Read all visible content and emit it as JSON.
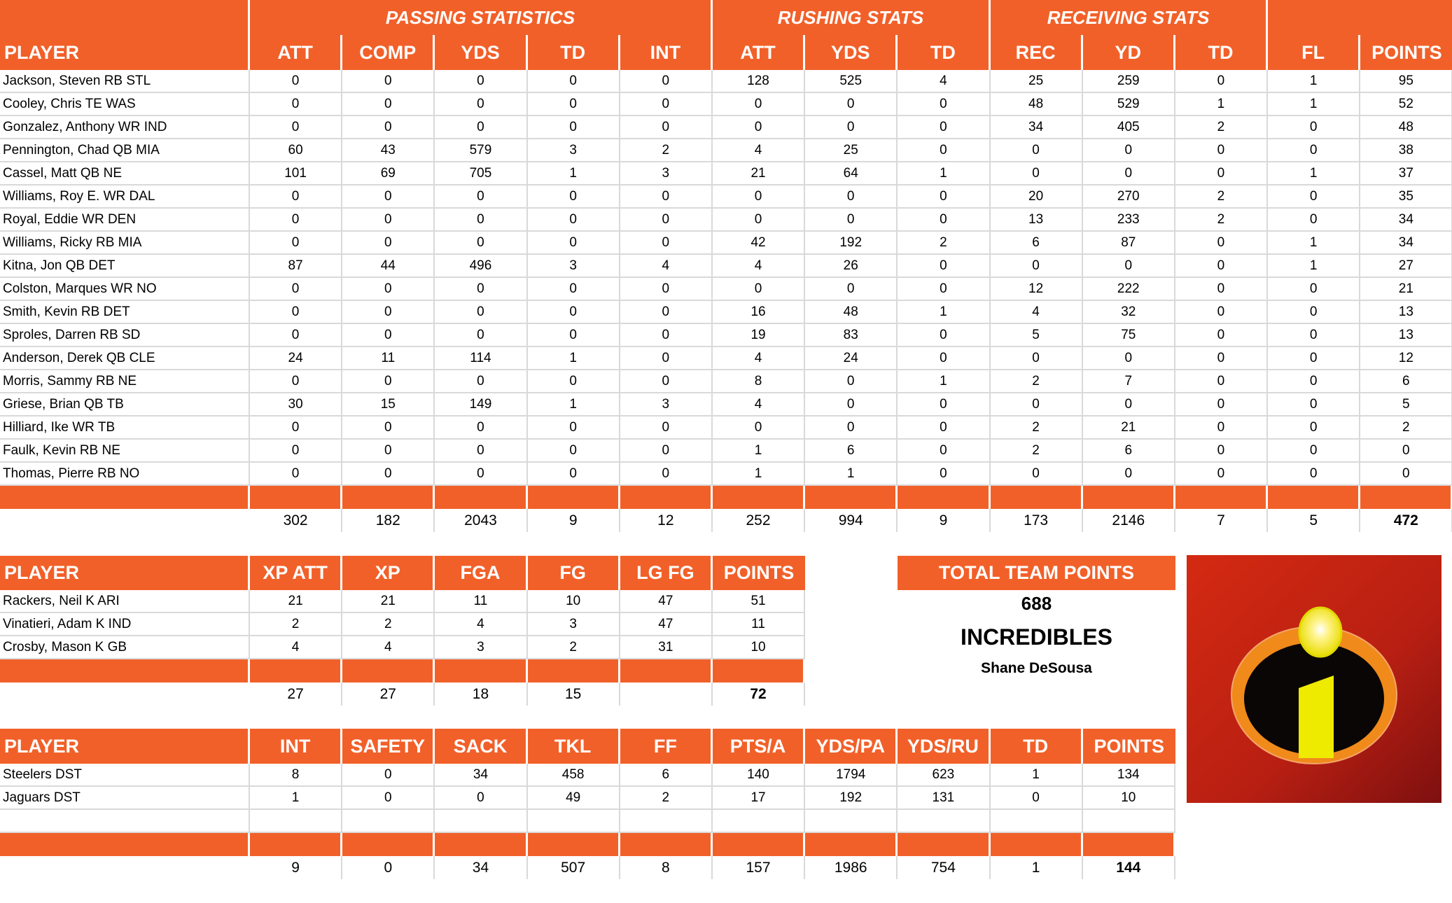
{
  "offense": {
    "groups": [
      {
        "label": "PASSING STATISTICS"
      },
      {
        "label": "RUSHING STATS"
      },
      {
        "label": "RECEIVING STATS"
      },
      {
        "label": ""
      }
    ],
    "columns": [
      "PLAYER",
      "ATT",
      "COMP",
      "YDS",
      "TD",
      "INT",
      "ATT",
      "YDS",
      "TD",
      "REC",
      "YD",
      "TD",
      "FL",
      "POINTS"
    ],
    "rows": [
      [
        "Jackson, Steven RB STL",
        "0",
        "0",
        "0",
        "0",
        "0",
        "128",
        "525",
        "4",
        "25",
        "259",
        "0",
        "1",
        "95"
      ],
      [
        "Cooley, Chris TE WAS",
        "0",
        "0",
        "0",
        "0",
        "0",
        "0",
        "0",
        "0",
        "48",
        "529",
        "1",
        "1",
        "52"
      ],
      [
        "Gonzalez, Anthony WR IND",
        "0",
        "0",
        "0",
        "0",
        "0",
        "0",
        "0",
        "0",
        "34",
        "405",
        "2",
        "0",
        "48"
      ],
      [
        "Pennington, Chad QB MIA",
        "60",
        "43",
        "579",
        "3",
        "2",
        "4",
        "25",
        "0",
        "0",
        "0",
        "0",
        "0",
        "38"
      ],
      [
        "Cassel, Matt QB NE",
        "101",
        "69",
        "705",
        "1",
        "3",
        "21",
        "64",
        "1",
        "0",
        "0",
        "0",
        "1",
        "37"
      ],
      [
        "Williams, Roy E. WR DAL",
        "0",
        "0",
        "0",
        "0",
        "0",
        "0",
        "0",
        "0",
        "20",
        "270",
        "2",
        "0",
        "35"
      ],
      [
        "Royal, Eddie WR DEN",
        "0",
        "0",
        "0",
        "0",
        "0",
        "0",
        "0",
        "0",
        "13",
        "233",
        "2",
        "0",
        "34"
      ],
      [
        "Williams, Ricky RB MIA",
        "0",
        "0",
        "0",
        "0",
        "0",
        "42",
        "192",
        "2",
        "6",
        "87",
        "0",
        "1",
        "34"
      ],
      [
        "Kitna, Jon QB DET",
        "87",
        "44",
        "496",
        "3",
        "4",
        "4",
        "26",
        "0",
        "0",
        "0",
        "0",
        "1",
        "27"
      ],
      [
        "Colston, Marques WR NO",
        "0",
        "0",
        "0",
        "0",
        "0",
        "0",
        "0",
        "0",
        "12",
        "222",
        "0",
        "0",
        "21"
      ],
      [
        "Smith, Kevin RB DET",
        "0",
        "0",
        "0",
        "0",
        "0",
        "16",
        "48",
        "1",
        "4",
        "32",
        "0",
        "0",
        "13"
      ],
      [
        "Sproles, Darren RB SD",
        "0",
        "0",
        "0",
        "0",
        "0",
        "19",
        "83",
        "0",
        "5",
        "75",
        "0",
        "0",
        "13"
      ],
      [
        "Anderson, Derek QB CLE",
        "24",
        "11",
        "114",
        "1",
        "0",
        "4",
        "24",
        "0",
        "0",
        "0",
        "0",
        "0",
        "12"
      ],
      [
        "Morris, Sammy RB NE",
        "0",
        "0",
        "0",
        "0",
        "0",
        "8",
        "0",
        "1",
        "2",
        "7",
        "0",
        "0",
        "6"
      ],
      [
        "Griese, Brian QB TB",
        "30",
        "15",
        "149",
        "1",
        "3",
        "4",
        "0",
        "0",
        "0",
        "0",
        "0",
        "0",
        "5"
      ],
      [
        "Hilliard, Ike WR TB",
        "0",
        "0",
        "0",
        "0",
        "0",
        "0",
        "0",
        "0",
        "2",
        "21",
        "0",
        "0",
        "2"
      ],
      [
        "Faulk, Kevin RB NE",
        "0",
        "0",
        "0",
        "0",
        "0",
        "1",
        "6",
        "0",
        "2",
        "6",
        "0",
        "0",
        "0"
      ],
      [
        "Thomas, Pierre RB NO",
        "0",
        "0",
        "0",
        "0",
        "0",
        "1",
        "1",
        "0",
        "0",
        "0",
        "0",
        "0",
        "0"
      ]
    ],
    "totals": [
      "",
      "302",
      "182",
      "2043",
      "9",
      "12",
      "252",
      "994",
      "9",
      "173",
      "2146",
      "7",
      "5",
      "472"
    ]
  },
  "kickers": {
    "columns": [
      "PLAYER",
      "XP ATT",
      "XP",
      "FGA",
      "FG",
      "LG FG",
      "POINTS"
    ],
    "rows": [
      [
        "Rackers, Neil K ARI",
        "21",
        "21",
        "11",
        "10",
        "47",
        "51"
      ],
      [
        "Vinatieri, Adam K IND",
        "2",
        "2",
        "4",
        "3",
        "47",
        "11"
      ],
      [
        "Crosby, Mason K GB",
        "4",
        "4",
        "3",
        "2",
        "31",
        "10"
      ]
    ],
    "totals": [
      "",
      "27",
      "27",
      "18",
      "15",
      "",
      "72"
    ]
  },
  "defense": {
    "columns": [
      "PLAYER",
      "INT",
      "SAFETY",
      "SACK",
      "TKL",
      "FF",
      "PTS/A",
      "YDS/PA",
      "YDS/RU",
      "TD",
      "POINTS"
    ],
    "rows": [
      [
        "Steelers DST",
        "8",
        "0",
        "34",
        "458",
        "6",
        "140",
        "1794",
        "623",
        "1",
        "134"
      ],
      [
        "Jaguars DST",
        "1",
        "0",
        "0",
        "49",
        "2",
        "17",
        "192",
        "131",
        "0",
        "10"
      ],
      [
        "",
        "",
        "",
        "",
        "",
        "",
        "",
        "",
        "",
        "",
        ""
      ]
    ],
    "totals": [
      "",
      "9",
      "0",
      "34",
      "507",
      "8",
      "157",
      "1986",
      "754",
      "1",
      "144"
    ]
  },
  "team": {
    "header": "TOTAL TEAM POINTS",
    "total_points": "688",
    "team_name": "INCREDIBLES",
    "owner": "Shane DeSousa",
    "logo_icon": "incredibles-logo-icon"
  },
  "colors": {
    "accent": "#f26029",
    "grid": "#d9d9d9"
  }
}
